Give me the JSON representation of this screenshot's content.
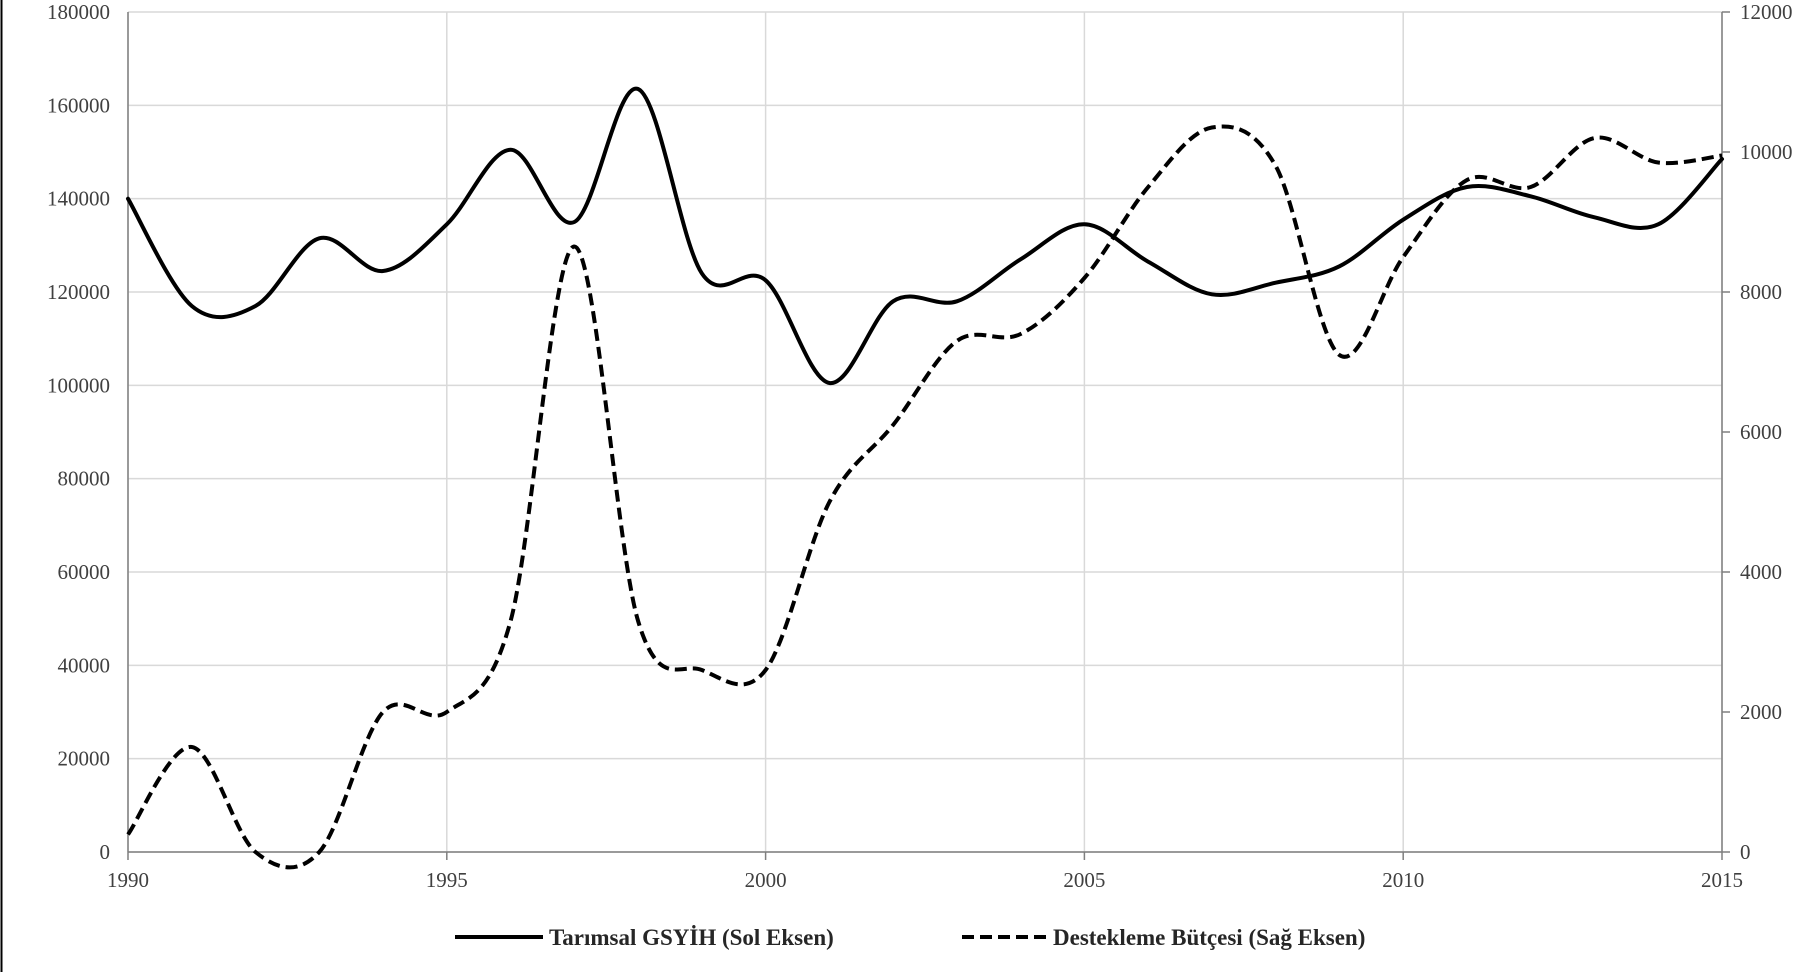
{
  "chart_data": {
    "type": "line",
    "title": "",
    "xlabel": "",
    "ylabel": "",
    "y2label": "",
    "grid": true,
    "legend_position": "bottom",
    "x_ticks": [
      "1990",
      "1995",
      "2000",
      "2005",
      "2010",
      "2015"
    ],
    "y_left_ticks": [
      "0",
      "20000",
      "40000",
      "60000",
      "80000",
      "100000",
      "120000",
      "140000",
      "160000",
      "180000"
    ],
    "y_right_ticks": [
      "0",
      "2000",
      "4000",
      "6000",
      "8000",
      "10000",
      "12000"
    ],
    "xlim": [
      1990,
      2015
    ],
    "ylim_left": [
      0,
      180000
    ],
    "ylim_right": [
      0,
      12000
    ],
    "x": [
      1990,
      1991,
      1992,
      1993,
      1994,
      1995,
      1996,
      1997,
      1998,
      1999,
      2000,
      2001,
      2002,
      2003,
      2004,
      2005,
      2006,
      2007,
      2008,
      2009,
      2010,
      2011,
      2012,
      2013,
      2014,
      2015
    ],
    "series": [
      {
        "name": "Tarımsal GSYİH (Sol Eksen)",
        "axis": "left",
        "style": "solid",
        "color": "#000000",
        "values": [
          140000,
          117000,
          117000,
          131500,
          124500,
          134500,
          150500,
          135000,
          163500,
          124000,
          122500,
          100500,
          118000,
          118000,
          127000,
          134500,
          126500,
          119500,
          122000,
          125500,
          135500,
          142500,
          140500,
          136000,
          134500,
          148500
        ]
      },
      {
        "name": "Destekleme Bütçesi (Sağ Eksen)",
        "axis": "right",
        "style": "dashed",
        "color": "#000000",
        "values": [
          250,
          1500,
          0,
          0,
          2000,
          2000,
          3300,
          8650,
          3300,
          2600,
          2600,
          5000,
          6100,
          7300,
          7400,
          8200,
          9500,
          10350,
          9800,
          7100,
          8500,
          9600,
          9500,
          10200,
          9850,
          9950
        ]
      }
    ]
  }
}
